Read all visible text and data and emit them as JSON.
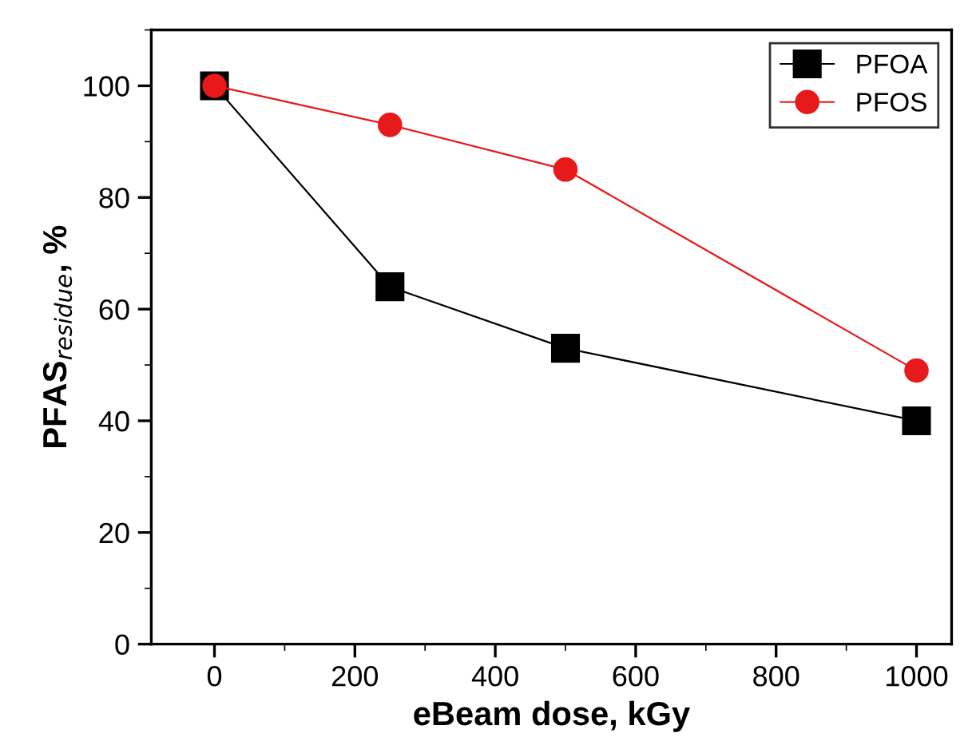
{
  "chart_data": {
    "type": "line",
    "xlabel": "eBeam dose, kGy",
    "ylabel": "PFAS$_{residue}$, %",
    "x": [
      0,
      250,
      500,
      1000
    ],
    "series": [
      {
        "name": "PFOA",
        "color": "#000000",
        "values": [
          100,
          64,
          53,
          40
        ],
        "marker": "square"
      },
      {
        "name": "PFOS",
        "color": "#e8191b",
        "values": [
          100,
          93,
          85,
          49
        ],
        "marker": "circle"
      }
    ],
    "xlim": [
      -90,
      1050
    ],
    "xticks": [
      0,
      200,
      400,
      600,
      800,
      1000
    ],
    "ylim": [
      0,
      110
    ],
    "yticks": [
      0,
      20,
      40,
      60,
      80,
      100
    ],
    "grid": false,
    "legend": "top right",
    "line_style": "solid"
  }
}
